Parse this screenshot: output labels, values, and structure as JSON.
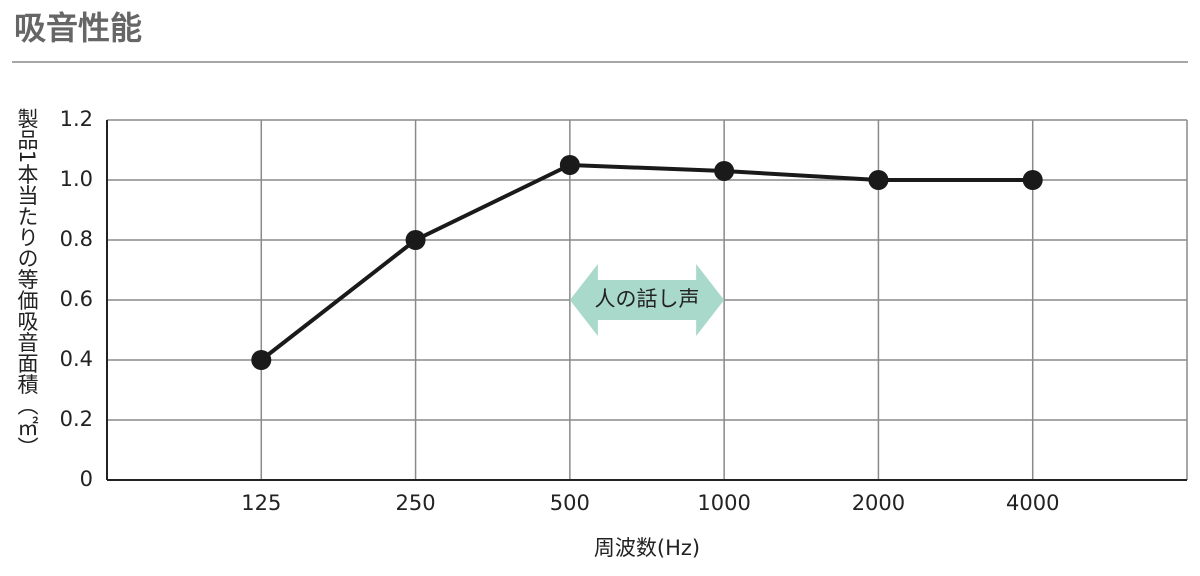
{
  "title": "吸音性能",
  "chart_data": {
    "type": "line",
    "y_label": "製品1本当たりの等価吸音面積（㎡）",
    "x_label": "周波数(Hz)",
    "annotation": "人の話し声",
    "categories": [
      "125",
      "250",
      "500",
      "1000",
      "2000",
      "4000"
    ],
    "values": [
      0.4,
      0.8,
      1.05,
      1.03,
      1.0,
      1.0
    ],
    "color": "#1a1a1a",
    "ylim": [
      0,
      1.2
    ],
    "yticks": [
      0,
      0.2,
      0.4,
      0.6,
      {
        "value": 0.8,
        "label": "0.8"
      },
      {
        "value": 1,
        "label": "1.0"
      },
      1.2
    ],
    "grid": true
  }
}
